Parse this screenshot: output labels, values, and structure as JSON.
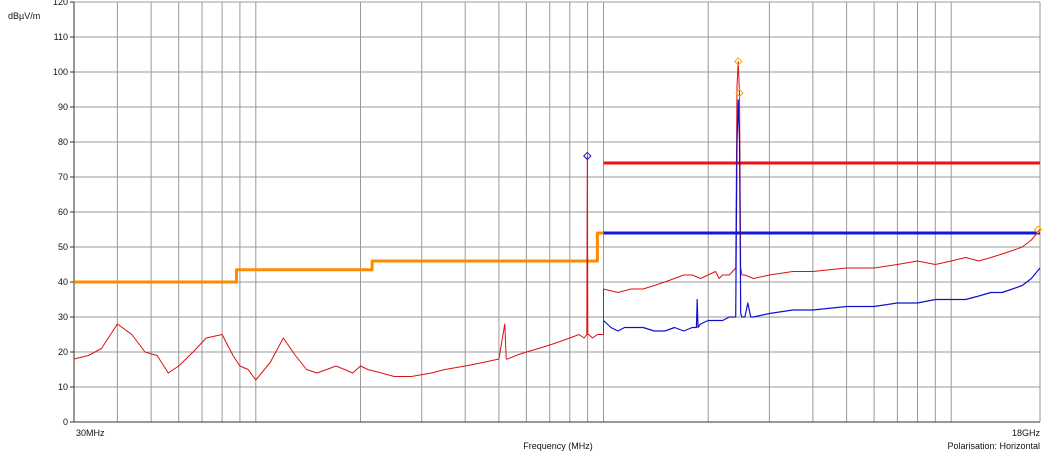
{
  "chart_data": {
    "type": "line",
    "title": "",
    "xlabel": "Frequency (MHz)",
    "ylabel": "dBµV/m",
    "x_scale": "log",
    "xlim": [
      30,
      18000
    ],
    "ylim": [
      0,
      120
    ],
    "y_ticks": [
      0,
      10,
      20,
      30,
      40,
      50,
      60,
      70,
      80,
      90,
      100,
      110,
      120
    ],
    "x_tick_labels": [
      {
        "x": 30,
        "label": "30MHz"
      },
      {
        "x": 18000,
        "label": "18GHz"
      }
    ],
    "footnote": "Polarisation: Horizontal",
    "grid": true,
    "colors": {
      "limit_low": "#ff8c00",
      "limit_peak": "#ee1111",
      "limit_avg": "#1515dd",
      "trace_peak": "#dd1111",
      "trace_avg": "#1111cc",
      "marker": "#ffa500",
      "grid": "#999999"
    },
    "series": [
      {
        "key": "limit_low",
        "x": [
          30,
          88,
          88,
          216,
          216,
          960,
          960,
          1000,
          1000
        ],
        "y": [
          40,
          40,
          43.5,
          43.5,
          46,
          46,
          54,
          54,
          54
        ]
      },
      {
        "key": "limit_peak",
        "x": [
          1000,
          18000
        ],
        "y": [
          74,
          74
        ]
      },
      {
        "key": "limit_avg",
        "x": [
          1000,
          18000
        ],
        "y": [
          54,
          54
        ]
      },
      {
        "key": "trace_peak",
        "x": [
          30,
          33,
          36,
          40,
          44,
          48,
          52,
          56,
          60,
          66,
          72,
          80,
          86,
          90,
          95,
          100,
          110,
          120,
          130,
          140,
          150,
          160,
          170,
          180,
          190,
          200,
          210,
          230,
          250,
          280,
          320,
          350,
          400,
          450,
          500,
          520,
          525,
          530,
          560,
          600,
          650,
          700,
          750,
          800,
          850,
          880,
          895,
          898,
          901,
          906,
          930,
          960,
          1000,
          1000,
          1100,
          1200,
          1300,
          1400,
          1500,
          1600,
          1700,
          1800,
          1900,
          2000,
          2100,
          2150,
          2200,
          2300,
          2400,
          2420,
          2440,
          2460,
          2480,
          2500,
          2550,
          2700,
          3000,
          3500,
          4000,
          5000,
          6000,
          7000,
          8000,
          9000,
          10000,
          11000,
          12000,
          13000,
          14000,
          15000,
          16000,
          17000,
          18000
        ],
        "y": [
          18,
          19,
          21,
          28,
          25,
          20,
          19,
          14,
          16,
          20,
          24,
          25,
          19,
          16,
          15,
          12,
          17,
          24,
          19,
          15,
          14,
          15,
          16,
          15,
          14,
          16,
          15,
          14,
          13,
          13,
          14,
          15,
          16,
          17,
          18,
          28,
          18,
          18,
          19,
          20,
          21,
          22,
          23,
          24,
          25,
          24,
          25,
          76,
          25,
          25,
          24,
          25,
          25,
          38,
          37,
          38,
          38,
          39,
          40,
          41,
          42,
          42,
          41,
          42,
          43,
          41,
          42,
          42,
          44,
          96,
          103,
          94,
          44,
          42,
          42,
          41,
          42,
          43,
          43,
          44,
          44,
          45,
          46,
          45,
          46,
          47,
          46,
          47,
          48,
          49,
          50,
          52,
          55
        ]
      },
      {
        "key": "trace_avg",
        "x": [
          1000,
          1050,
          1100,
          1150,
          1200,
          1300,
          1400,
          1500,
          1600,
          1700,
          1800,
          1850,
          1860,
          1870,
          1900,
          2000,
          2100,
          2200,
          2300,
          2400,
          2420,
          2440,
          2460,
          2480,
          2500,
          2550,
          2600,
          2650,
          2700,
          3000,
          3500,
          4000,
          5000,
          6000,
          7000,
          8000,
          9000,
          10000,
          11000,
          12000,
          13000,
          14000,
          15000,
          16000,
          17000,
          18000
        ],
        "y": [
          29,
          27,
          26,
          27,
          27,
          27,
          26,
          26,
          27,
          26,
          27,
          27,
          35,
          27,
          28,
          29,
          29,
          29,
          30,
          30,
          80,
          92,
          80,
          31,
          30,
          30,
          34,
          30,
          30,
          31,
          32,
          32,
          33,
          33,
          34,
          34,
          35,
          35,
          35,
          36,
          37,
          37,
          38,
          39,
          41,
          44
        ]
      }
    ],
    "markers": [
      {
        "x": 898,
        "y": 76,
        "color": "#1111cc"
      },
      {
        "x": 2440,
        "y": 103,
        "color": "#ffa500"
      },
      {
        "x": 2460,
        "y": 94,
        "color": "#ffa500"
      },
      {
        "x": 18000,
        "y": 55,
        "color": "#ffa500"
      }
    ]
  }
}
